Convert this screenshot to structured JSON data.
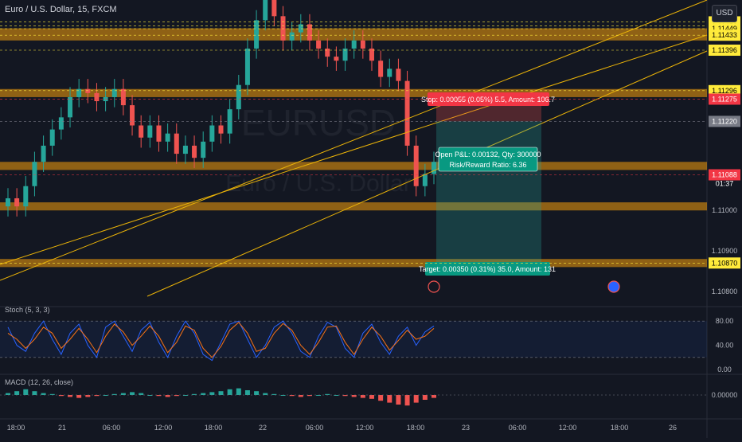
{
  "header": {
    "title": "Euro / U.S. Dollar, 15, FXCM",
    "currency_button": "USD"
  },
  "colors": {
    "bg": "#131722",
    "up": "#26a69a",
    "down": "#ef5350",
    "zone": "#f59e0b",
    "trend": "#eab308",
    "stoch_k": "#2962ff",
    "stoch_d": "#f97316",
    "label_yellow": "#ffeb3b",
    "label_red": "#f23645"
  },
  "chart_data": [
    {
      "type": "candlestick",
      "title": "Euro / U.S. Dollar, 15, FXCM",
      "ylim": [
        1.1078,
        1.1152
      ],
      "y_ticks": [
        "1.11466",
        "1.11456",
        "1.11449",
        "1.11433",
        "1.11396",
        "1.11296",
        "1.11275",
        "1.11220",
        "1.11088",
        "1.11000",
        "1.10900",
        "1.10870",
        "1.10800"
      ],
      "x_ticks": [
        "18:00",
        "21",
        "06:00",
        "12:00",
        "18:00",
        "22",
        "06:00",
        "12:00",
        "18:00",
        "23",
        "06:00",
        "12:00",
        "18:00",
        "26"
      ],
      "price_label": {
        "value": "1.11088",
        "countdown": "01:37"
      },
      "watermark": {
        "symbol": "EURUSD",
        "name": "Euro / U.S. Dollar"
      },
      "key_levels": {
        "1.11466": {
          "color": "yellow"
        },
        "1.11456": {
          "color": "yellow"
        },
        "1.11449": {
          "color": "yellow"
        },
        "1.11433": {
          "color": "yellow"
        },
        "1.11396": {
          "color": "yellow"
        },
        "1.11296": {
          "color": "yellow"
        },
        "1.11275": {
          "color": "red"
        },
        "1.11220": {
          "color": "gray"
        },
        "1.11088": {
          "color": "red"
        },
        "1.10870": {
          "color": "yellow"
        }
      },
      "zones": [
        {
          "from": 1.1142,
          "to": 1.1145
        },
        {
          "from": 1.1128,
          "to": 1.113
        },
        {
          "from": 1.111,
          "to": 1.1112
        },
        {
          "from": 1.11,
          "to": 1.1102
        },
        {
          "from": 1.1086,
          "to": 1.1088
        }
      ],
      "series": [
        {
          "values": [
            1.1103,
            1.1101,
            1.1106,
            1.1112,
            1.1116,
            1.112,
            1.1123,
            1.1128,
            1.113,
            1.1129,
            1.1127,
            1.1128,
            1.113,
            1.1126,
            1.1121,
            1.1118,
            1.1121,
            1.1117,
            1.1119,
            1.1114,
            1.1116,
            1.1113,
            1.1117,
            1.1121,
            1.1119,
            1.1125,
            1.1131,
            1.114,
            1.1147,
            1.1152,
            1.1148,
            1.1142,
            1.1144,
            1.1146,
            1.1142,
            1.114,
            1.1138,
            1.1137,
            1.114,
            1.1142,
            1.114,
            1.1137,
            1.1133,
            1.1135,
            1.1132,
            1.1116,
            1.1106,
            1.1109,
            1.1112
          ]
        }
      ],
      "position": {
        "stop_label": "Stop: 0.00055 (0.05%) 5.5, Amount: 106.7",
        "pnl_label": "Open P&L: 0.00132, Qty: 300000",
        "rr_label": "Risk/Reward Ratio: 6.36",
        "target_label": "Target: 0.00350 (0.31%) 35.0, Amount: 131",
        "stop_price": 1.11275,
        "entry_price": 1.1122,
        "target_price": 1.1087
      }
    },
    {
      "type": "line",
      "title": "Stoch (5, 3, 3)",
      "ylim": [
        0,
        100
      ],
      "y_ticks": [
        "80.00",
        "40.00",
        "0.00"
      ],
      "series": [
        {
          "values": [
            70,
            40,
            30,
            60,
            80,
            50,
            25,
            60,
            75,
            40,
            20,
            70,
            80,
            55,
            30,
            65,
            78,
            45,
            20,
            55,
            80,
            60,
            25,
            15,
            45,
            75,
            80,
            50,
            20,
            40,
            70,
            80,
            60,
            30,
            20,
            55,
            78,
            70,
            35,
            20,
            60,
            75,
            45,
            25,
            55,
            70,
            40,
            62,
            72
          ]
        },
        {
          "values": [
            60,
            50,
            35,
            50,
            70,
            60,
            35,
            50,
            68,
            50,
            28,
            55,
            75,
            62,
            40,
            55,
            72,
            55,
            28,
            45,
            72,
            65,
            35,
            20,
            38,
            65,
            78,
            60,
            30,
            35,
            60,
            76,
            65,
            40,
            25,
            45,
            70,
            72,
            45,
            25,
            50,
            70,
            55,
            32,
            48,
            65,
            50,
            55,
            68
          ]
        }
      ]
    },
    {
      "type": "bar",
      "title": "MACD (12, 26, close)",
      "y_ticks": [
        "0.00000"
      ],
      "series": [
        {
          "values": [
            2e-05,
            4e-05,
            6e-05,
            4e-05,
            2e-05,
            1e-05,
            -1e-05,
            -2e-05,
            -3e-05,
            -2e-05,
            -1e-05,
            0.0,
            1e-05,
            2e-05,
            3e-05,
            2e-05,
            0.0,
            -1e-05,
            -2e-05,
            -1e-05,
            0.0,
            1e-05,
            2e-05,
            3e-05,
            4e-05,
            6e-05,
            7e-05,
            5e-05,
            4e-05,
            2e-05,
            1e-05,
            0.0,
            -1e-05,
            -2e-05,
            -1e-05,
            0.0,
            1e-05,
            0.0,
            -1e-05,
            -2e-05,
            -3e-05,
            -4e-05,
            -6e-05,
            -8e-05,
            -0.0001,
            -0.00011,
            -8e-05,
            -5e-05,
            -3e-05
          ]
        }
      ]
    }
  ]
}
